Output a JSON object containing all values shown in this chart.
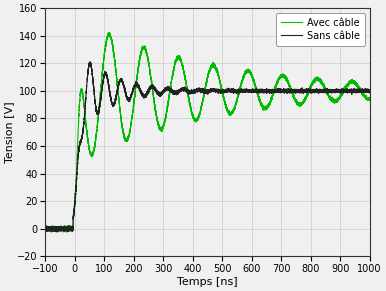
{
  "xlim": [
    -100,
    1000
  ],
  "ylim": [
    -20,
    160
  ],
  "xlabel": "Temps [ns]",
  "ylabel": "Tension [V]",
  "xticks": [
    -100,
    0,
    100,
    200,
    300,
    400,
    500,
    600,
    700,
    800,
    900,
    1000
  ],
  "yticks": [
    -20,
    0,
    20,
    40,
    60,
    80,
    100,
    120,
    140,
    160
  ],
  "legend_labels": [
    "Avec câble",
    "Sans câble"
  ],
  "line_colors_green": "#00bb00",
  "line_colors_black": "#222222",
  "line_width": 0.8,
  "background_color": "#f0f0f0",
  "grid_color": "#cccccc",
  "steady_state": 100,
  "peak_green": 153,
  "peak_black": 133,
  "freq_green": 0.0085,
  "freq_black": 0.019,
  "decay_green": 0.0022,
  "decay_black": 0.009,
  "rise_tau": 6,
  "rise_t0": 12
}
